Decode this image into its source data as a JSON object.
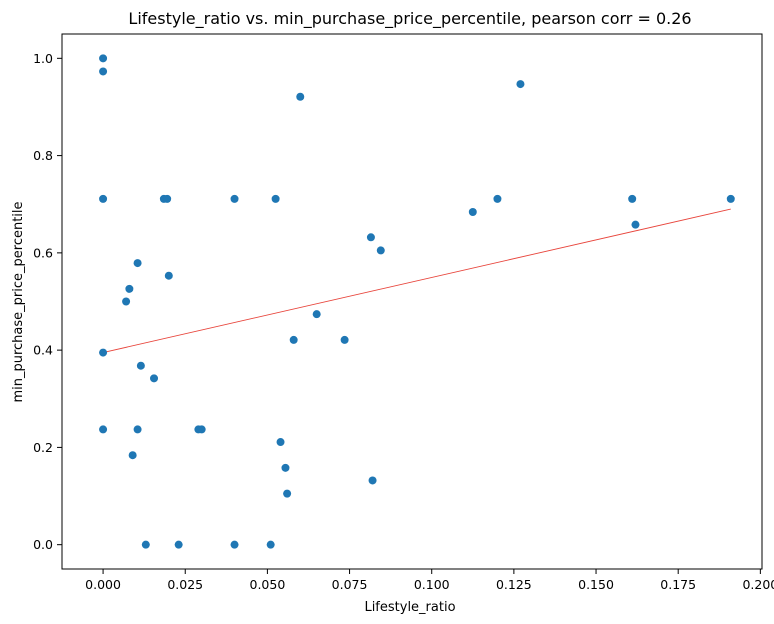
{
  "chart_data": {
    "type": "scatter",
    "title": "Lifestyle_ratio vs. min_purchase_price_percentile, pearson corr = 0.26",
    "xlabel": "Lifestyle_ratio",
    "ylabel": "min_purchase_price_percentile",
    "xlim": [
      -0.0125,
      0.2005
    ],
    "ylim": [
      -0.05,
      1.05
    ],
    "xticks": [
      0.0,
      0.025,
      0.05,
      0.075,
      0.1,
      0.125,
      0.15,
      0.175,
      0.2
    ],
    "xtick_labels": [
      "0.000",
      "0.025",
      "0.050",
      "0.075",
      "0.100",
      "0.125",
      "0.150",
      "0.175",
      "0.200"
    ],
    "yticks": [
      0.0,
      0.2,
      0.4,
      0.6,
      0.8,
      1.0
    ],
    "ytick_labels": [
      "0.0",
      "0.2",
      "0.4",
      "0.6",
      "0.8",
      "1.0"
    ],
    "grid": false,
    "point_color": "#1f77b4",
    "trend_color": "#e8453c",
    "points": [
      {
        "x": 0.0,
        "y": 1.0
      },
      {
        "x": 0.0,
        "y": 0.973
      },
      {
        "x": 0.0,
        "y": 0.711
      },
      {
        "x": 0.0,
        "y": 0.395
      },
      {
        "x": 0.0,
        "y": 0.237
      },
      {
        "x": 0.007,
        "y": 0.5
      },
      {
        "x": 0.008,
        "y": 0.526
      },
      {
        "x": 0.009,
        "y": 0.184
      },
      {
        "x": 0.0105,
        "y": 0.579
      },
      {
        "x": 0.0105,
        "y": 0.237
      },
      {
        "x": 0.0115,
        "y": 0.368
      },
      {
        "x": 0.013,
        "y": 0.0
      },
      {
        "x": 0.0155,
        "y": 0.342
      },
      {
        "x": 0.0185,
        "y": 0.711
      },
      {
        "x": 0.0195,
        "y": 0.711
      },
      {
        "x": 0.02,
        "y": 0.553
      },
      {
        "x": 0.023,
        "y": 0.0
      },
      {
        "x": 0.029,
        "y": 0.237
      },
      {
        "x": 0.03,
        "y": 0.237
      },
      {
        "x": 0.04,
        "y": 0.711
      },
      {
        "x": 0.04,
        "y": 0.0
      },
      {
        "x": 0.051,
        "y": 0.0
      },
      {
        "x": 0.0525,
        "y": 0.711
      },
      {
        "x": 0.054,
        "y": 0.211
      },
      {
        "x": 0.0555,
        "y": 0.158
      },
      {
        "x": 0.056,
        "y": 0.105
      },
      {
        "x": 0.058,
        "y": 0.421
      },
      {
        "x": 0.06,
        "y": 0.921
      },
      {
        "x": 0.065,
        "y": 0.474
      },
      {
        "x": 0.0735,
        "y": 0.421
      },
      {
        "x": 0.0815,
        "y": 0.632
      },
      {
        "x": 0.082,
        "y": 0.132
      },
      {
        "x": 0.0845,
        "y": 0.605
      },
      {
        "x": 0.1125,
        "y": 0.684
      },
      {
        "x": 0.12,
        "y": 0.711
      },
      {
        "x": 0.127,
        "y": 0.947
      },
      {
        "x": 0.161,
        "y": 0.711
      },
      {
        "x": 0.162,
        "y": 0.658
      },
      {
        "x": 0.191,
        "y": 0.711
      }
    ],
    "trend_line": {
      "x": [
        0.0,
        0.191
      ],
      "y": [
        0.395,
        0.69
      ]
    }
  }
}
